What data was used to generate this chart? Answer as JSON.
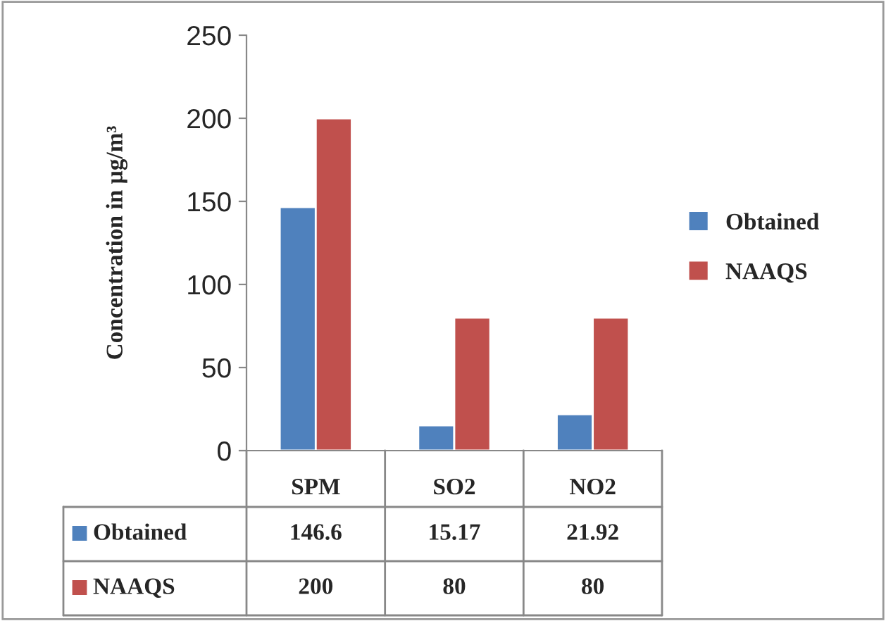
{
  "chart_data": {
    "type": "bar",
    "ylabel": "Concentration in µg/m³",
    "categories": [
      "SPM",
      "SO2",
      "NO2"
    ],
    "series": [
      {
        "name": "Obtained",
        "color": "#4f81bd",
        "values": [
          146.6,
          15.17,
          21.92
        ]
      },
      {
        "name": "NAAQS",
        "color": "#c0504d",
        "values": [
          200,
          80,
          80
        ]
      }
    ],
    "ylim": [
      0,
      250
    ],
    "yticks": [
      0,
      50,
      100,
      150,
      200,
      250
    ],
    "grid": false,
    "legend": "right",
    "data_labels": true
  }
}
